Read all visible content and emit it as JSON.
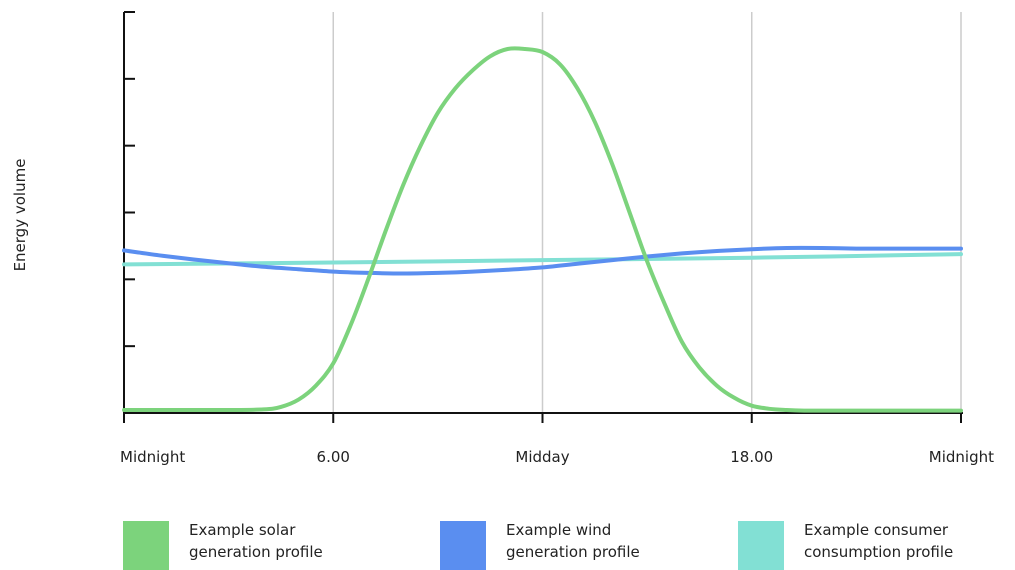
{
  "chart_data": {
    "type": "line",
    "title": "",
    "ylabel": "Energy volume",
    "xlabel": "",
    "x_ticks": [
      {
        "hour": 0,
        "label": "Midnight"
      },
      {
        "hour": 6,
        "label": "6.00"
      },
      {
        "hour": 12,
        "label": "Midday"
      },
      {
        "hour": 18,
        "label": "18.00"
      },
      {
        "hour": 24,
        "label": "Midnight"
      }
    ],
    "xlim": [
      0,
      24
    ],
    "ylim": [
      0,
      6
    ],
    "y_tick_count": 6,
    "grid": "vertical",
    "legend_position": "bottom",
    "series": [
      {
        "key": "solar",
        "color": "#7cd37c",
        "legend_lines": [
          "Example solar",
          "generation profile"
        ],
        "x": [
          0,
          1,
          2,
          3,
          4,
          4.5,
          5,
          5.5,
          6,
          6.5,
          7,
          7.5,
          8,
          8.5,
          9,
          9.5,
          10,
          10.5,
          11,
          11.5,
          12,
          12.5,
          13,
          13.5,
          14,
          14.5,
          15,
          15.5,
          16,
          16.5,
          17,
          17.5,
          18,
          18.5,
          19,
          19.5,
          20,
          21,
          22,
          23,
          24
        ],
        "y": [
          0.05,
          0.05,
          0.05,
          0.05,
          0.06,
          0.1,
          0.22,
          0.45,
          0.82,
          1.45,
          2.2,
          3.0,
          3.75,
          4.4,
          4.95,
          5.35,
          5.65,
          5.88,
          6.0,
          6.0,
          5.95,
          5.75,
          5.35,
          4.8,
          4.1,
          3.3,
          2.5,
          1.8,
          1.17,
          0.75,
          0.45,
          0.25,
          0.12,
          0.07,
          0.05,
          0.04,
          0.04,
          0.04,
          0.04,
          0.04,
          0.04
        ]
      },
      {
        "key": "wind",
        "color": "#5a8ef0",
        "legend_lines": [
          "Example wind",
          "generation profile"
        ],
        "x": [
          0,
          1,
          2,
          3,
          4,
          5,
          6,
          7,
          8,
          9,
          10,
          11,
          12,
          13,
          14,
          15,
          16,
          17,
          18,
          19,
          20,
          21,
          22,
          23,
          24
        ],
        "y": [
          2.68,
          2.6,
          2.53,
          2.47,
          2.41,
          2.37,
          2.33,
          2.31,
          2.3,
          2.31,
          2.33,
          2.36,
          2.4,
          2.46,
          2.52,
          2.58,
          2.63,
          2.67,
          2.7,
          2.72,
          2.72,
          2.71,
          2.71,
          2.71,
          2.71
        ]
      },
      {
        "key": "consumer",
        "color": "#82e0d4",
        "legend_lines": [
          "Example consumer",
          "consumption profile"
        ],
        "x": [
          0,
          6,
          12,
          18,
          24
        ],
        "y": [
          2.45,
          2.48,
          2.52,
          2.56,
          2.62
        ]
      }
    ]
  }
}
